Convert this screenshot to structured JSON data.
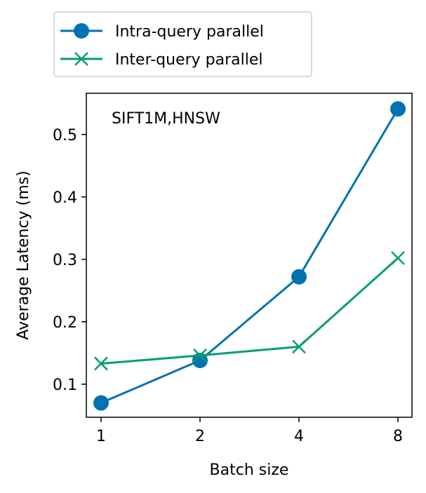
{
  "chart_data": {
    "type": "line",
    "categories": [
      "1",
      "2",
      "4",
      "8"
    ],
    "xlabel": "Batch size",
    "ylabel": "Average Latency (ms)",
    "ylim": [
      0.047,
      0.566
    ],
    "yticks": [
      0.1,
      0.2,
      0.3,
      0.4,
      0.5
    ],
    "ytick_labels": [
      "0.1",
      "0.2",
      "0.3",
      "0.4",
      "0.5"
    ],
    "annotation": "SIFT1M,HNSW",
    "legend_position": "above plot, left",
    "grid": false,
    "series": [
      {
        "name": "Intra-query parallel",
        "color": "#0072B2",
        "marker": "circle",
        "values": [
          0.07,
          0.138,
          0.272,
          0.541
        ]
      },
      {
        "name": "Inter-query parallel",
        "color": "#009E73",
        "marker": "x",
        "values": [
          0.133,
          0.146,
          0.16,
          0.302
        ]
      }
    ]
  }
}
